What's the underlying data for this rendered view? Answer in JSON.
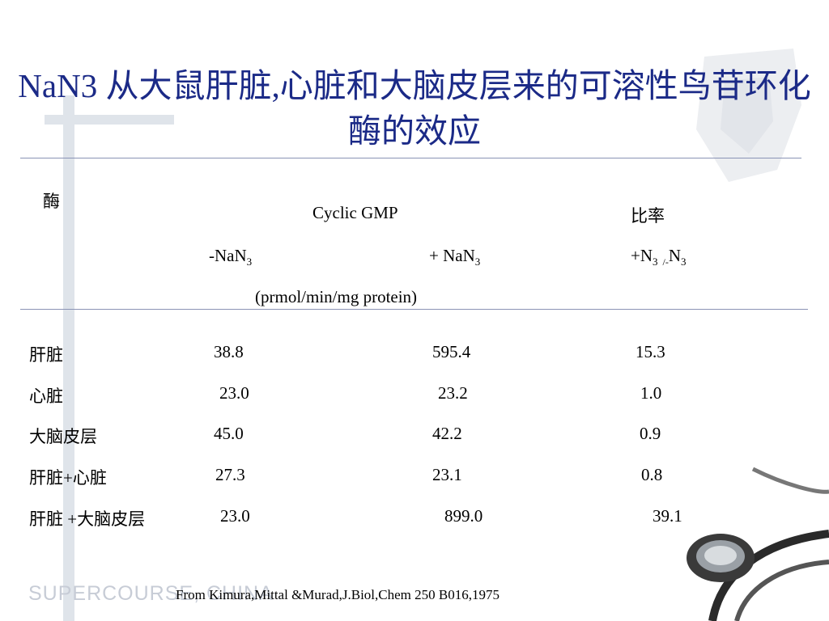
{
  "title": "NaN3 从大鼠肝脏,心脏和大脑皮层来的可溶性鸟苷环化酶的效应",
  "header": {
    "enzyme": "酶",
    "cgmp": "Cyclic GMP",
    "ratio": "比率",
    "minus_nan3": "-NaN",
    "plus_nan3": "+ NaN",
    "ratio_sub": "+N",
    "ratio_mid": "/-",
    "ratio_n": "N",
    "sub3": "3",
    "unit": "(prmol/min/mg protein)"
  },
  "rows": [
    {
      "tissue": "肝脏",
      "minus": "38.8",
      "plus": "595.4",
      "ratio": "15.3"
    },
    {
      "tissue": "心脏",
      "minus": "23.0",
      "plus": "23.2",
      "ratio": "1.0"
    },
    {
      "tissue": "大脑皮层",
      "minus": "45.0",
      "plus": "42.2",
      "ratio": "0.9"
    },
    {
      "tissue": "肝脏+心脏",
      "minus": "27.3",
      "plus": "23.1",
      "ratio": "0.8"
    },
    {
      "tissue": "肝脏 +大脑皮层",
      "minus": "23.0",
      "plus": "899.0",
      "ratio": "39.1"
    }
  ],
  "footer": "From Kimura,Mittal &Murad,J.Biol,Chem 250 B016,1975",
  "logo": "SUPERCOURSE, CHINA",
  "colors": {
    "title": "#1b2a87",
    "rule": "#8a93b5",
    "decoration": "#dfe4ea"
  }
}
